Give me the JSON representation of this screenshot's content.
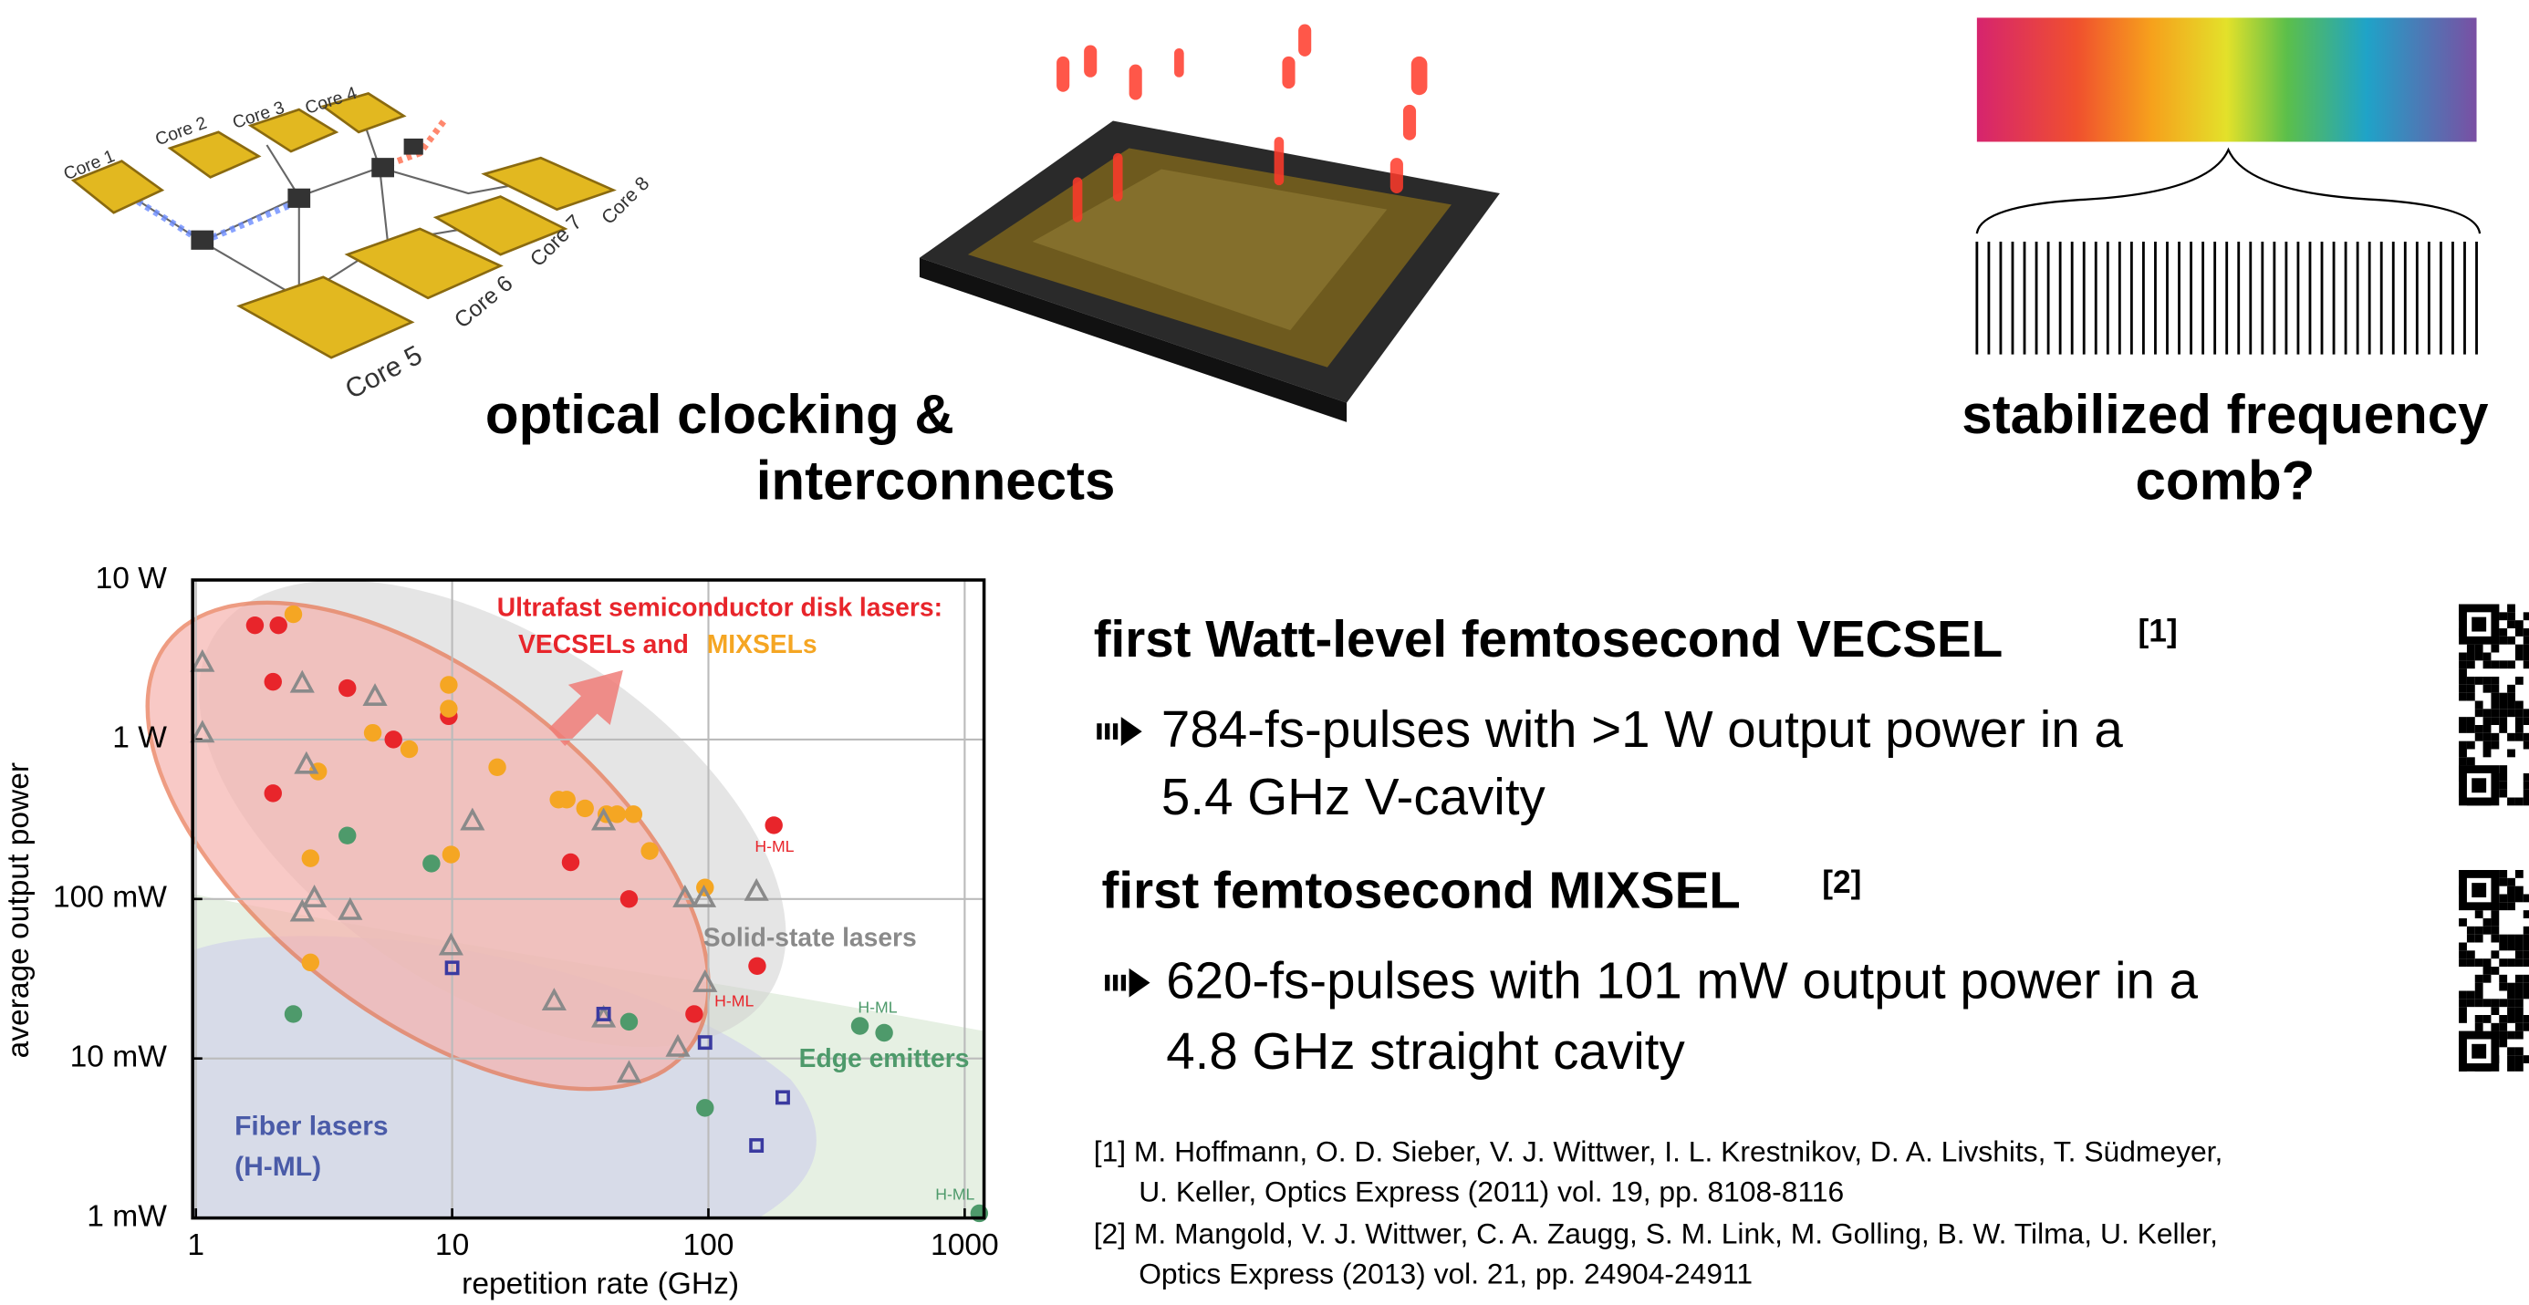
{
  "top": {
    "cores": [
      "Core 1",
      "Core 2",
      "Core 3",
      "Core 4",
      "Core 5",
      "Core 6",
      "Core 7",
      "Core 8"
    ],
    "clocking_label": [
      "optical clocking &",
      "interconnects"
    ],
    "comb_label": [
      "stabilized frequency",
      "comb?"
    ]
  },
  "chart_data": {
    "type": "scatter",
    "x_label": "repetition rate (GHz)",
    "y_label": "average output power",
    "log_x": true,
    "log_y": true,
    "grid": true,
    "xlim": [
      1,
      1190
    ],
    "xticks": [
      1,
      10,
      100,
      1000
    ],
    "ylim": [
      1,
      10000
    ],
    "yticks": [
      {
        "value": 1,
        "label": "1 mW"
      },
      {
        "value": 10,
        "label": "10 mW"
      },
      {
        "value": 100,
        "label": "100 mW"
      },
      {
        "value": 1000,
        "label": "1 W"
      },
      {
        "value": 10000,
        "label": "10 W"
      }
    ],
    "series": [
      {
        "color": "#e8252b",
        "marker": "circle",
        "x": [
          1.7,
          2.1,
          2,
          3.9,
          5.9,
          9.7,
          2,
          29,
          49,
          155,
          88,
          180
        ],
        "values": [
          5200,
          5200,
          2300,
          2100,
          1000,
          1400,
          460,
          170,
          100,
          38,
          19,
          290
        ]
      },
      {
        "color": "#f5a623",
        "marker": "circle",
        "x": [
          2.4,
          3,
          2.8,
          2.8,
          4.9,
          6.8,
          9.7,
          9.7,
          9.9,
          15,
          26,
          28,
          33,
          40,
          44,
          51,
          59,
          97
        ],
        "values": [
          6100,
          630,
          180,
          40,
          1100,
          870,
          2200,
          1560,
          190,
          670,
          420,
          420,
          370,
          340,
          340,
          340,
          200,
          118
        ]
      },
      {
        "color": "#8a8a8a",
        "marker": "triangle",
        "x": [
          1.06,
          1.06,
          2.6,
          2.7,
          5,
          2.9,
          2.6,
          4,
          9.9,
          12,
          25,
          39,
          39,
          49,
          76,
          81,
          96,
          97,
          154
        ],
        "values": [
          3050,
          1100,
          2260,
          700,
          1870,
          102,
          83,
          85,
          51,
          310,
          23,
          18,
          310,
          8.1,
          11.8,
          102,
          102,
          30,
          112
        ]
      },
      {
        "color": "#4e9a6b",
        "marker": "circle",
        "x": [
          3.9,
          8.3,
          2.4,
          49,
          97,
          390,
          485,
          1140
        ],
        "values": [
          250,
          167,
          19,
          17,
          4.9,
          16,
          14.5,
          1.07
        ]
      },
      {
        "color": "#3a3aa0",
        "marker": "square",
        "x": [
          10,
          39,
          97,
          195,
          154
        ],
        "values": [
          37,
          19,
          12.6,
          5.7,
          2.85
        ]
      }
    ],
    "annotations": [
      {
        "text": "Ultrafast semiconductor disk lasers:",
        "color": "#e8252b"
      },
      {
        "text": "VECSELs and",
        "color": "#e8252b"
      },
      {
        "text": "MIXSELs",
        "color": "#f5a623"
      },
      {
        "text": "Solid-state lasers",
        "color": "#8a8a8a"
      },
      {
        "text": "Edge emitters",
        "color": "#4e9a6b"
      },
      {
        "text": "Fiber lasers",
        "color": "#4a5ba8"
      },
      {
        "text": "(H-ML)",
        "color": "#4a5ba8"
      },
      {
        "text": "H-ML",
        "color": "#e8252b"
      },
      {
        "text": "H-ML",
        "color": "#e8252b"
      },
      {
        "text": "H-ML",
        "color": "#4e9a6b"
      },
      {
        "text": "H-ML",
        "color": "#4e9a6b"
      }
    ]
  },
  "results": [
    {
      "heading": "first Watt-level femtosecond VECSEL",
      "ref": "[1]",
      "bullet": [
        "784-fs-pulses with >1 W output power in a",
        "5.4 GHz V-cavity"
      ]
    },
    {
      "heading": "first femtosecond MIXSEL",
      "ref": "[2]",
      "bullet": [
        "620-fs-pulses with 101 mW output power in a",
        "4.8 GHz straight cavity"
      ]
    }
  ],
  "references": [
    [
      "[1] M. Hoffmann, O. D. Sieber, V. J. Wittwer, I. L. Krestnikov, D. A. Livshits, T. Südmeyer,",
      "U. Keller,  Optics Express (2011) vol. 19, pp. 8108-8116"
    ],
    [
      "[2] M. Mangold, V. J. Wittwer, C. A. Zaugg, S. M. Link, M. Golling, B. W. Tilma, U. Keller,",
      "Optics Express (2013) vol. 21, pp. 24904-24911"
    ]
  ]
}
